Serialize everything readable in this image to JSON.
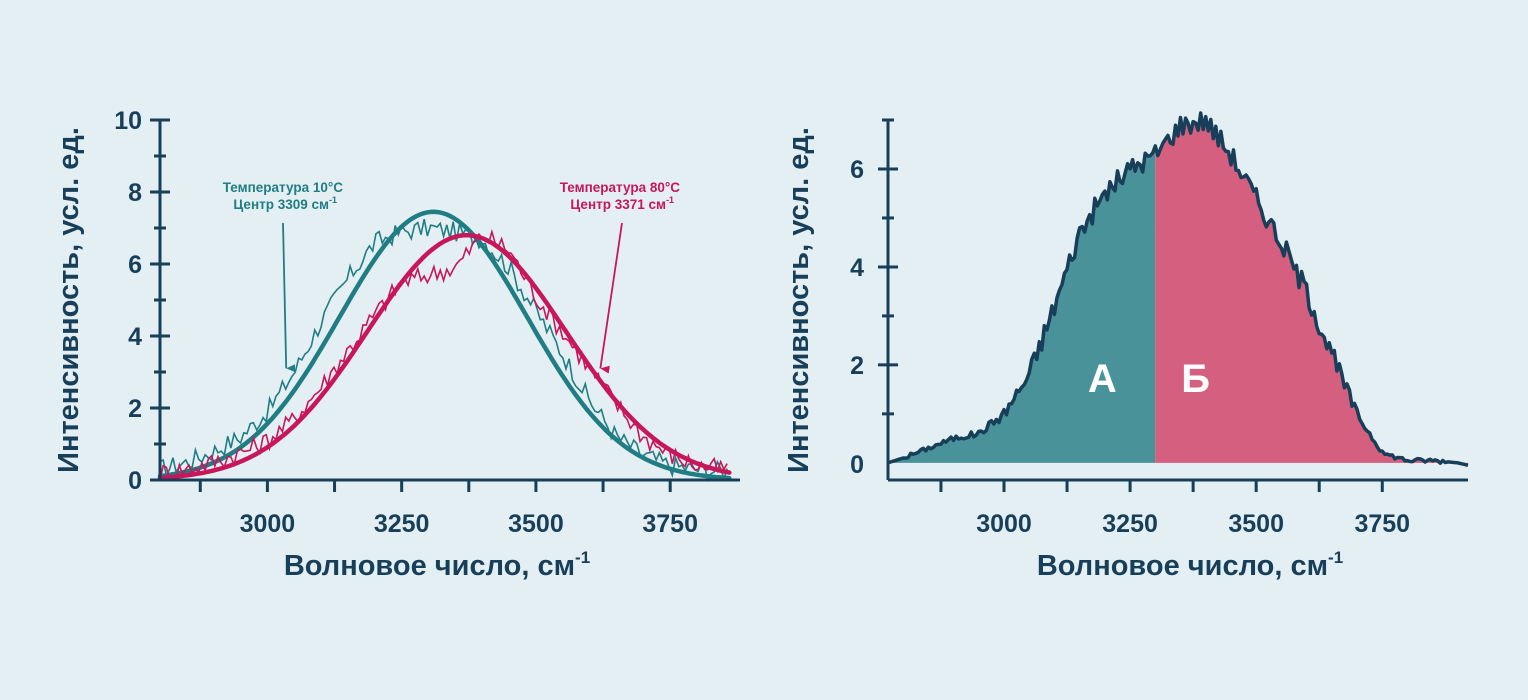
{
  "colors": {
    "background": "#e4eff3",
    "axis": "#183f5a",
    "teal": "#1f7d83",
    "crimson": "#c8165a",
    "teal_fill": "#4a9299",
    "crimson_fill": "#d45f7e",
    "label_white": "#ffffff"
  },
  "chart_data": [
    {
      "type": "line",
      "xlabel": "Волновое число, см",
      "xlabel_sup": "-1",
      "ylabel": "Интенсивность, усл. ед.",
      "xlim": [
        2800,
        3880
      ],
      "ylim": [
        0,
        10
      ],
      "x_ticks": [
        3000,
        3250,
        3500,
        3750
      ],
      "x_tick_labels": [
        "3000",
        "3250",
        "3500",
        "3750"
      ],
      "y_ticks": [
        0,
        2,
        4,
        6,
        8,
        10
      ],
      "y_tick_labels": [
        "0",
        "2",
        "4",
        "6",
        "8",
        "10"
      ],
      "series": [
        {
          "color_key": "teal",
          "annotation_line1": "Температура 10°С",
          "annotation_line2": "Центр 3309 см",
          "annotation_sup": "-1",
          "annotation_arrow_target": [
            3035,
            3.1
          ],
          "fit": {
            "center": 3309,
            "amplitude": 7.45,
            "sigma": 175
          },
          "noisy_y_at_x": [
            [
              2800,
              0.3
            ],
            [
              2850,
              0.5
            ],
            [
              2900,
              0.8
            ],
            [
              2950,
              1.2
            ],
            [
              3000,
              1.9
            ],
            [
              3050,
              3.0
            ],
            [
              3100,
              4.4
            ],
            [
              3150,
              5.6
            ],
            [
              3200,
              6.6
            ],
            [
              3250,
              6.9
            ],
            [
              3300,
              7.0
            ],
            [
              3350,
              6.9
            ],
            [
              3400,
              6.7
            ],
            [
              3450,
              5.9
            ],
            [
              3500,
              4.7
            ],
            [
              3550,
              3.5
            ],
            [
              3600,
              2.2
            ],
            [
              3650,
              1.2
            ],
            [
              3700,
              0.7
            ],
            [
              3750,
              0.4
            ],
            [
              3800,
              0.3
            ],
            [
              3850,
              0.25
            ]
          ]
        },
        {
          "color_key": "crimson",
          "annotation_line1": "Температура 80°С",
          "annotation_line2": "Центр 3371 см",
          "annotation_sup": "-1",
          "annotation_arrow_target": [
            3620,
            3.1
          ],
          "fit": {
            "center": 3371,
            "amplitude": 6.8,
            "sigma": 185
          },
          "noisy_y_at_x": [
            [
              2800,
              0.2
            ],
            [
              2850,
              0.3
            ],
            [
              2900,
              0.5
            ],
            [
              2950,
              0.75
            ],
            [
              3000,
              1.1
            ],
            [
              3050,
              1.7
            ],
            [
              3100,
              2.6
            ],
            [
              3150,
              3.6
            ],
            [
              3200,
              4.6
            ],
            [
              3250,
              5.5
            ],
            [
              3300,
              5.7
            ],
            [
              3350,
              5.9
            ],
            [
              3400,
              6.8
            ],
            [
              3450,
              6.4
            ],
            [
              3500,
              5.1
            ],
            [
              3550,
              4.1
            ],
            [
              3600,
              3.1
            ],
            [
              3650,
              2.1
            ],
            [
              3700,
              1.2
            ],
            [
              3750,
              0.7
            ],
            [
              3800,
              0.4
            ],
            [
              3850,
              0.3
            ]
          ]
        }
      ]
    },
    {
      "type": "area",
      "xlabel": "Волновое число, см",
      "xlabel_sup": "-1",
      "ylabel": "Интенсивность, усл. ед.",
      "xlim": [
        2770,
        3920
      ],
      "ylim": [
        -0.35,
        7.0
      ],
      "x_ticks": [
        3000,
        3250,
        3500,
        3750
      ],
      "x_tick_labels": [
        "3000",
        "3250",
        "3500",
        "3750"
      ],
      "y_ticks": [
        2,
        4,
        6
      ],
      "y_tick_labels": [
        "2",
        "4",
        "6"
      ],
      "y_zero_label": "0",
      "split_x": 3300,
      "regions": [
        {
          "label": "А",
          "color_key": "teal_fill",
          "label_pos": [
            3195,
            1.45
          ]
        },
        {
          "label": "Б",
          "color_key": "crimson_fill",
          "label_pos": [
            3380,
            1.45
          ]
        }
      ],
      "x": [
        2770,
        2800,
        2850,
        2900,
        2950,
        3000,
        3050,
        3100,
        3150,
        3200,
        3250,
        3300,
        3350,
        3400,
        3450,
        3500,
        3550,
        3600,
        3650,
        3700,
        3750,
        3800,
        3850,
        3900,
        3920
      ],
      "y": [
        0.0,
        0.1,
        0.3,
        0.5,
        0.6,
        1.0,
        1.8,
        3.2,
        4.7,
        5.5,
        6.0,
        6.3,
        6.9,
        7.0,
        6.3,
        5.4,
        4.5,
        3.5,
        2.2,
        1.0,
        0.2,
        0.05,
        0.05,
        0.0,
        -0.05
      ]
    }
  ]
}
